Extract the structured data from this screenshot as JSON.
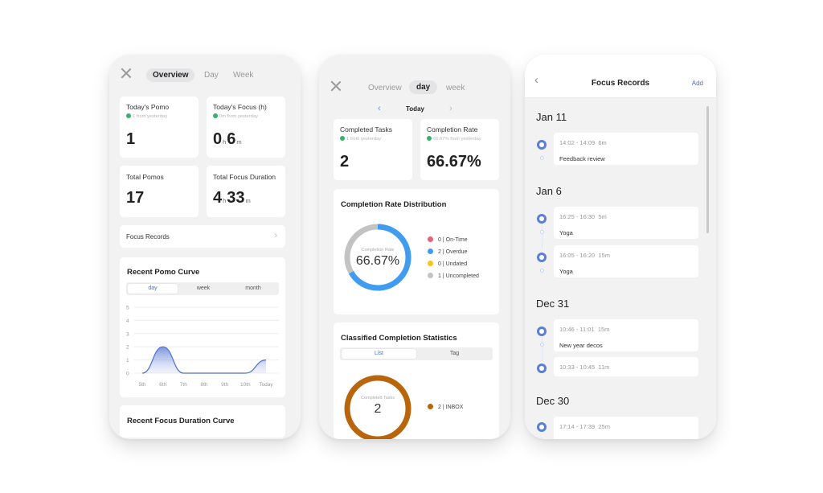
{
  "overview": {
    "tabs": [
      "Overview",
      "Day",
      "Week"
    ],
    "cards": [
      {
        "label": "Today's Pomo",
        "sub": "1 from yesterday",
        "value": "1"
      },
      {
        "label": "Today's Focus (h)",
        "sub": "0m from yesterday",
        "h": "0",
        "h_unit": "h",
        "m": "6",
        "m_unit": "m"
      },
      {
        "label": "Total Pomos",
        "value": "17"
      },
      {
        "label": "Total Focus Duration",
        "h": "4",
        "h_unit": "h",
        "m": "33",
        "m_unit": "m"
      }
    ],
    "focus_records_link": "Focus Records",
    "curve": {
      "title": "Recent Pomo Curve",
      "segments": [
        "day",
        "week",
        "month"
      ],
      "yticks": [
        "5",
        "4",
        "3",
        "2",
        "1",
        "0"
      ],
      "xticks": [
        "5th",
        "6th",
        "7th",
        "8th",
        "9th",
        "10th",
        "Today"
      ]
    },
    "duration_title": "Recent Focus Duration Curve"
  },
  "chart_data": {
    "type": "area",
    "categories": [
      "5th",
      "6th",
      "7th",
      "8th",
      "9th",
      "10th",
      "Today"
    ],
    "values": [
      0,
      2,
      0,
      0,
      0,
      0,
      1
    ],
    "title": "Recent Pomo Curve",
    "ylim": [
      0,
      5
    ],
    "grid": true
  },
  "day_view": {
    "tabs": [
      "Overview",
      "day",
      "week"
    ],
    "date_label": "Today",
    "cards": [
      {
        "label": "Completed Tasks",
        "sub": "1 from yesterday",
        "value": "2"
      },
      {
        "label": "Completion Rate",
        "sub": "66.67% from yesterday",
        "value": "66.67%"
      }
    ],
    "distribution": {
      "title": "Completion Rate Distribution",
      "ring_label": "Completion Rate",
      "ring_value": "66.67%",
      "legend": [
        {
          "count": "0",
          "name": "On-Time",
          "color": "#e8637a"
        },
        {
          "count": "2",
          "name": "Overdue",
          "color": "#3f9cf0"
        },
        {
          "count": "0",
          "name": "Undated",
          "color": "#f3c51f"
        },
        {
          "count": "1",
          "name": "Uncompleted",
          "color": "#c3c3c3"
        }
      ]
    },
    "classified": {
      "title": "Classified Completion Statistics",
      "segments": [
        "List",
        "Tag"
      ],
      "ring_label": "Completed Tasks",
      "ring_value": "2",
      "legend": [
        {
          "count": "2",
          "name": "INBOX",
          "color": "#b8650b"
        }
      ]
    }
  },
  "records": {
    "title": "Focus Records",
    "add_label": "Add",
    "days": [
      {
        "date": "Jan 11",
        "items": [
          {
            "time": "14:02 - 14:09",
            "dur": "6m",
            "title": "Feedback review"
          }
        ]
      },
      {
        "date": "Jan 6",
        "items": [
          {
            "time": "16:25 - 16:30",
            "dur": "5m",
            "title": "Yoga"
          },
          {
            "time": "16:05 - 16:20",
            "dur": "15m",
            "title": "Yoga"
          }
        ]
      },
      {
        "date": "Dec 31",
        "items": [
          {
            "time": "10:46 - 11:01",
            "dur": "15m",
            "title": "New year decos"
          },
          {
            "time": "10:33 - 10:45",
            "dur": "11m",
            "title": ""
          }
        ]
      },
      {
        "date": "Dec 30",
        "items": [
          {
            "time": "17:14 - 17:39",
            "dur": "25m",
            "title": ""
          }
        ]
      }
    ]
  }
}
